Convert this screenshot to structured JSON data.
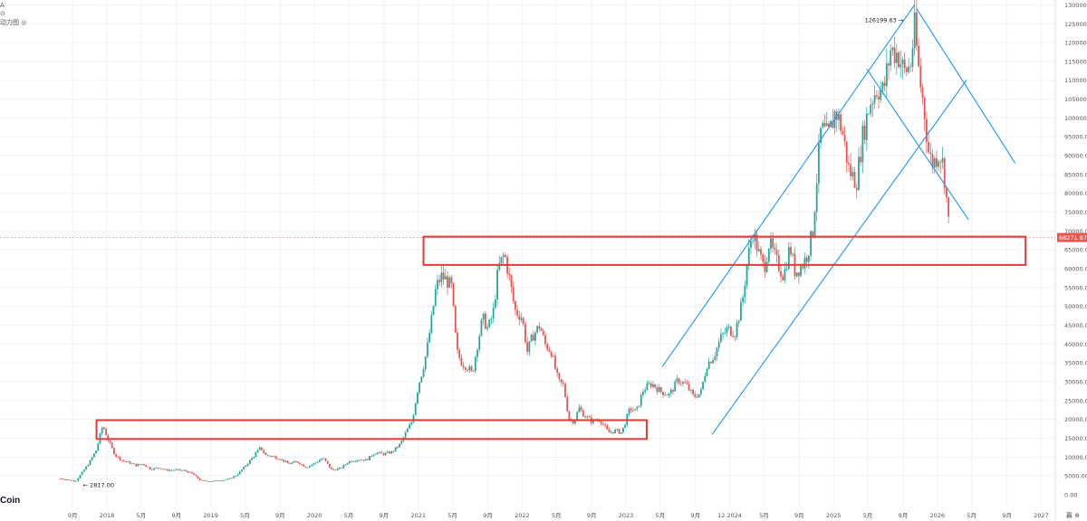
{
  "chart_legend": {
    "line1": "A",
    "line2": "⊙",
    "line3": "动力图 ◎"
  },
  "watermark": "Coin",
  "corner_label": "暮 ⊕",
  "price_label": "68271.87",
  "peak_label": "126199.63",
  "low_label": "2817.00",
  "colors": {
    "up": "#26a69a",
    "down": "#ef5350",
    "channel": "#2196f3",
    "box": "#e53935",
    "price_tag": "#ef5350",
    "grid": "#f0f3fa",
    "axis_text": "#555555"
  },
  "chart_data": {
    "type": "candlestick",
    "yaxis": {
      "min": 0,
      "max": 130000,
      "ticks": [
        {
          "value": 5000,
          "label": "5000.00"
        },
        {
          "value": 10000,
          "label": "10000.00"
        },
        {
          "value": 15000,
          "label": "15000.00"
        },
        {
          "value": 20000,
          "label": "20000.00"
        },
        {
          "value": 25000,
          "label": "25000.00"
        },
        {
          "value": 30000,
          "label": "30000.00"
        },
        {
          "value": 35000,
          "label": "35000.00"
        },
        {
          "value": 40000,
          "label": "40000.00"
        },
        {
          "value": 45000,
          "label": "45000.00"
        },
        {
          "value": 50000,
          "label": "50000.00"
        },
        {
          "value": 55000,
          "label": "55000.00"
        },
        {
          "value": 60000,
          "label": "60000.00"
        },
        {
          "value": 65000,
          "label": "65000.00"
        },
        {
          "value": 70000,
          "label": "70000.00"
        },
        {
          "value": 75000,
          "label": "75000.00"
        },
        {
          "value": 80000,
          "label": "80000.00"
        },
        {
          "value": 85000,
          "label": "85000.00"
        },
        {
          "value": 90000,
          "label": "90000.00"
        },
        {
          "value": 95000,
          "label": "95000.00"
        },
        {
          "value": 100000,
          "label": "100000.00"
        },
        {
          "value": 105000,
          "label": "105000.00"
        },
        {
          "value": 110000,
          "label": "110000.00"
        },
        {
          "value": 115000,
          "label": "115000.00"
        },
        {
          "value": 120000,
          "label": "120000.00"
        },
        {
          "value": 125000,
          "label": "125000.00"
        },
        {
          "value": 130000,
          "label": "130000.00"
        }
      ],
      "zero_label": "0.00"
    },
    "xaxis": {
      "labels": [
        {
          "t": 2017.67,
          "label": "9月"
        },
        {
          "t": 2018.0,
          "label": "2018"
        },
        {
          "t": 2018.33,
          "label": "5月"
        },
        {
          "t": 2018.67,
          "label": "9月"
        },
        {
          "t": 2019.0,
          "label": "2019"
        },
        {
          "t": 2019.33,
          "label": "5月"
        },
        {
          "t": 2019.67,
          "label": "9月"
        },
        {
          "t": 2020.0,
          "label": "2020"
        },
        {
          "t": 2020.33,
          "label": "5月"
        },
        {
          "t": 2020.67,
          "label": "9月"
        },
        {
          "t": 2021.0,
          "label": "2021"
        },
        {
          "t": 2021.33,
          "label": "5月"
        },
        {
          "t": 2021.67,
          "label": "9月"
        },
        {
          "t": 2022.0,
          "label": "2022"
        },
        {
          "t": 2022.33,
          "label": "5月"
        },
        {
          "t": 2022.67,
          "label": "9月"
        },
        {
          "t": 2023.0,
          "label": "2023"
        },
        {
          "t": 2023.33,
          "label": "5月"
        },
        {
          "t": 2023.67,
          "label": "9月"
        },
        {
          "t": 2024.0,
          "label": "12 2024"
        },
        {
          "t": 2024.33,
          "label": "5月"
        },
        {
          "t": 2024.67,
          "label": "9月"
        },
        {
          "t": 2025.0,
          "label": "2025"
        },
        {
          "t": 2025.33,
          "label": "5月"
        },
        {
          "t": 2025.67,
          "label": "9月"
        },
        {
          "t": 2026.0,
          "label": "2026"
        },
        {
          "t": 2026.33,
          "label": "5月"
        },
        {
          "t": 2026.67,
          "label": "9月"
        },
        {
          "t": 2027.0,
          "label": "2027"
        }
      ]
    },
    "current_price": 68271.87,
    "annotations": [
      {
        "text": "126199.63",
        "t": 2025.78,
        "value": 126199.63
      },
      {
        "text": "2817.00",
        "t": 2017.7,
        "value": 2817.0
      }
    ],
    "price_path": [
      [
        2017.55,
        4300
      ],
      [
        2017.62,
        4000
      ],
      [
        2017.7,
        3600
      ],
      [
        2017.75,
        5500
      ],
      [
        2017.83,
        8500
      ],
      [
        2017.9,
        12000
      ],
      [
        2017.96,
        18500
      ],
      [
        2018.02,
        14000
      ],
      [
        2018.08,
        10500
      ],
      [
        2018.15,
        9000
      ],
      [
        2018.22,
        8500
      ],
      [
        2018.28,
        7800
      ],
      [
        2018.35,
        8200
      ],
      [
        2018.42,
        6800
      ],
      [
        2018.5,
        7200
      ],
      [
        2018.58,
        6500
      ],
      [
        2018.67,
        6600
      ],
      [
        2018.75,
        6400
      ],
      [
        2018.83,
        5500
      ],
      [
        2018.9,
        3800
      ],
      [
        2019.0,
        3600
      ],
      [
        2019.08,
        3800
      ],
      [
        2019.17,
        4100
      ],
      [
        2019.25,
        5200
      ],
      [
        2019.33,
        7500
      ],
      [
        2019.42,
        10500
      ],
      [
        2019.48,
        12500
      ],
      [
        2019.53,
        10500
      ],
      [
        2019.6,
        10200
      ],
      [
        2019.67,
        9500
      ],
      [
        2019.75,
        8200
      ],
      [
        2019.83,
        8800
      ],
      [
        2019.92,
        7300
      ],
      [
        2020.0,
        8300
      ],
      [
        2020.08,
        9800
      ],
      [
        2020.17,
        6500
      ],
      [
        2020.25,
        7000
      ],
      [
        2020.33,
        8800
      ],
      [
        2020.42,
        9400
      ],
      [
        2020.5,
        9200
      ],
      [
        2020.58,
        11200
      ],
      [
        2020.67,
        10800
      ],
      [
        2020.75,
        11400
      ],
      [
        2020.83,
        13600
      ],
      [
        2020.88,
        16500
      ],
      [
        2020.94,
        19500
      ],
      [
        2021.0,
        29000
      ],
      [
        2021.04,
        33000
      ],
      [
        2021.08,
        38000
      ],
      [
        2021.13,
        47000
      ],
      [
        2021.17,
        55000
      ],
      [
        2021.22,
        58000
      ],
      [
        2021.27,
        57000
      ],
      [
        2021.32,
        55000
      ],
      [
        2021.37,
        38000
      ],
      [
        2021.42,
        35000
      ],
      [
        2021.47,
        34000
      ],
      [
        2021.52,
        32000
      ],
      [
        2021.57,
        40000
      ],
      [
        2021.62,
        47000
      ],
      [
        2021.67,
        44000
      ],
      [
        2021.72,
        48000
      ],
      [
        2021.77,
        60000
      ],
      [
        2021.83,
        64000
      ],
      [
        2021.88,
        57000
      ],
      [
        2021.93,
        49000
      ],
      [
        2022.0,
        47000
      ],
      [
        2022.05,
        38000
      ],
      [
        2022.1,
        42000
      ],
      [
        2022.17,
        45000
      ],
      [
        2022.22,
        40000
      ],
      [
        2022.28,
        38000
      ],
      [
        2022.35,
        30000
      ],
      [
        2022.4,
        29000
      ],
      [
        2022.45,
        20000
      ],
      [
        2022.5,
        19500
      ],
      [
        2022.55,
        23000
      ],
      [
        2022.6,
        21000
      ],
      [
        2022.67,
        19500
      ],
      [
        2022.75,
        20000
      ],
      [
        2022.83,
        16500
      ],
      [
        2022.9,
        17000
      ],
      [
        2022.96,
        16500
      ],
      [
        2023.04,
        23000
      ],
      [
        2023.1,
        22000
      ],
      [
        2023.17,
        28000
      ],
      [
        2023.25,
        29500
      ],
      [
        2023.33,
        27500
      ],
      [
        2023.42,
        26500
      ],
      [
        2023.5,
        30500
      ],
      [
        2023.58,
        29200
      ],
      [
        2023.65,
        26000
      ],
      [
        2023.72,
        27000
      ],
      [
        2023.78,
        34500
      ],
      [
        2023.85,
        37000
      ],
      [
        2023.92,
        42000
      ],
      [
        2023.98,
        44000
      ],
      [
        2024.05,
        43000
      ],
      [
        2024.12,
        51000
      ],
      [
        2024.17,
        62000
      ],
      [
        2024.22,
        70000
      ],
      [
        2024.28,
        64000
      ],
      [
        2024.33,
        60000
      ],
      [
        2024.38,
        67000
      ],
      [
        2024.45,
        62000
      ],
      [
        2024.52,
        58000
      ],
      [
        2024.58,
        66000
      ],
      [
        2024.63,
        59000
      ],
      [
        2024.7,
        61000
      ],
      [
        2024.75,
        64000
      ],
      [
        2024.8,
        70000
      ],
      [
        2024.85,
        88000
      ],
      [
        2024.88,
        97000
      ],
      [
        2024.95,
        95000
      ],
      [
        2025.02,
        102000
      ],
      [
        2025.08,
        97000
      ],
      [
        2025.15,
        86000
      ],
      [
        2025.22,
        83000
      ],
      [
        2025.28,
        95000
      ],
      [
        2025.35,
        104000
      ],
      [
        2025.42,
        108000
      ],
      [
        2025.48,
        107000
      ],
      [
        2025.55,
        118000
      ],
      [
        2025.62,
        117000
      ],
      [
        2025.68,
        112000
      ],
      [
        2025.74,
        114000
      ],
      [
        2025.78,
        124000
      ],
      [
        2025.83,
        110000
      ],
      [
        2025.87,
        103000
      ],
      [
        2025.92,
        90000
      ],
      [
        2025.96,
        88000
      ],
      [
        2026.02,
        91000
      ],
      [
        2026.06,
        87000
      ],
      [
        2026.09,
        78000
      ],
      [
        2026.12,
        68272
      ]
    ],
    "channel_lines": [
      {
        "from": [
          2023.35,
          34000
        ],
        "to": [
          2025.78,
          130000
        ]
      },
      {
        "from": [
          2023.83,
          16000
        ],
        "to": [
          2026.28,
          110000
        ]
      },
      {
        "from": [
          2025.32,
          113000
        ],
        "to": [
          2026.3,
          73000
        ]
      },
      {
        "from": [
          2025.8,
          129000
        ],
        "to": [
          2026.75,
          88000
        ]
      }
    ],
    "zones": [
      {
        "t0": 2017.9,
        "t1": 2023.2,
        "v0": 14800,
        "v1": 19800
      },
      {
        "t0": 2021.05,
        "t1": 2026.85,
        "v0": 61000,
        "v1": 68500
      }
    ],
    "dashed_level": 68271.87
  }
}
